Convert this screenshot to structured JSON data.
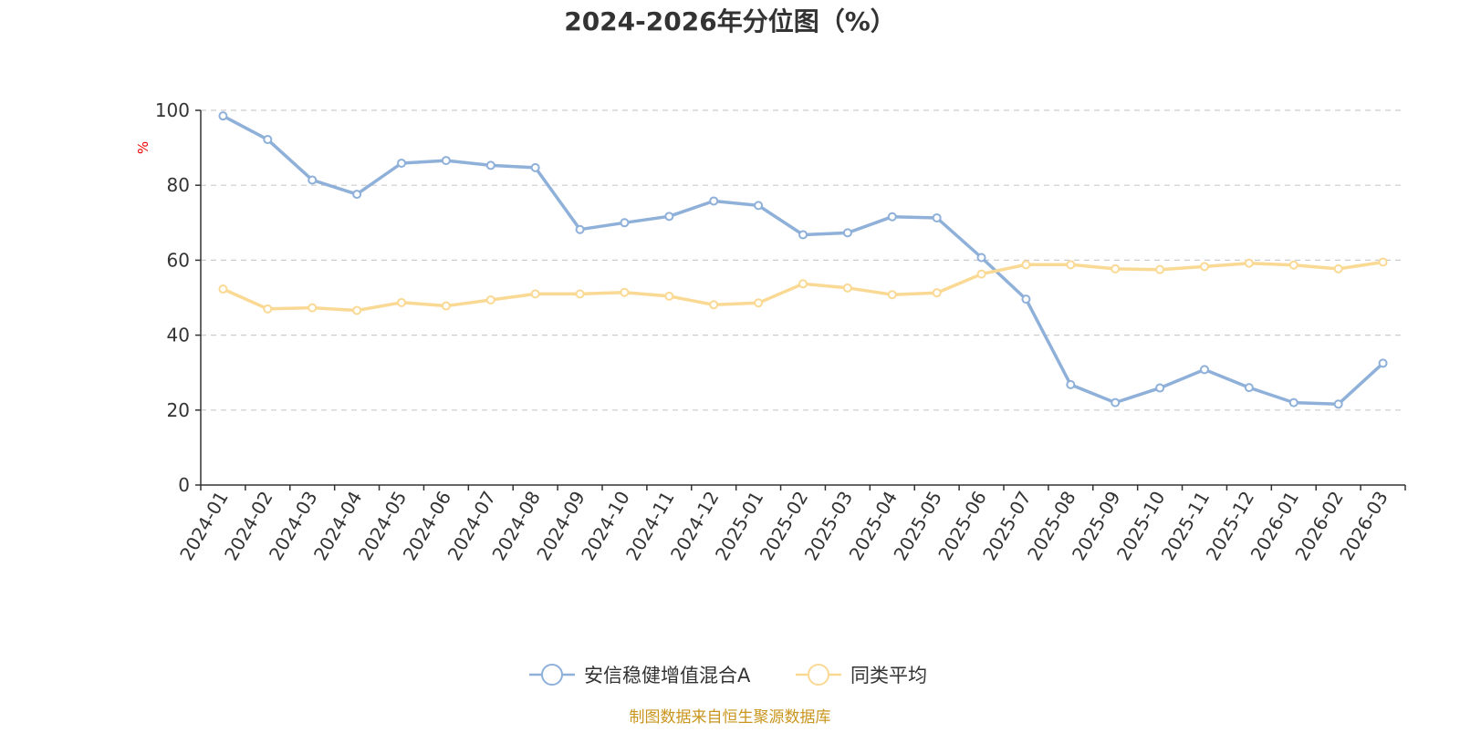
{
  "chart_data": {
    "type": "line",
    "title": "2024-2026年分位图（%）",
    "y_unit": "%",
    "ylim": [
      0,
      100
    ],
    "y_ticks": [
      0,
      20,
      40,
      60,
      80,
      100
    ],
    "grid": "horizontal dashed",
    "legend_position": "bottom-center",
    "categories": [
      "2024-01",
      "2024-02",
      "2024-03",
      "2024-04",
      "2024-05",
      "2024-06",
      "2024-07",
      "2024-08",
      "2024-09",
      "2024-10",
      "2024-11",
      "2024-12",
      "2025-01",
      "2025-02",
      "2025-03",
      "2025-04",
      "2025-05",
      "2025-06",
      "2025-07",
      "2025-08",
      "2025-09",
      "2025-10",
      "2025-11",
      "2025-12",
      "2026-01",
      "2026-02",
      "2026-03"
    ],
    "series": [
      {
        "name": "安信稳健增值混合A",
        "color": "#8eb0d9",
        "values": [
          98.5,
          92.2,
          81.4,
          77.6,
          85.9,
          86.6,
          85.3,
          84.7,
          68.2,
          70.0,
          71.7,
          75.8,
          74.6,
          66.8,
          67.3,
          71.6,
          71.3,
          60.7,
          49.6,
          26.8,
          22.0,
          25.9,
          30.8,
          26.0,
          22.0,
          21.6,
          32.5
        ]
      },
      {
        "name": "同类平均",
        "color": "#fad994",
        "values": [
          52.3,
          47.0,
          47.3,
          46.6,
          48.7,
          47.8,
          49.4,
          51.0,
          51.0,
          51.4,
          50.4,
          48.1,
          48.6,
          53.7,
          52.6,
          50.8,
          51.3,
          56.3,
          58.8,
          58.8,
          57.7,
          57.5,
          58.3,
          59.2,
          58.7,
          57.7,
          59.5
        ]
      }
    ]
  },
  "source_note": "制图数据来自恒生聚源数据库",
  "colors": {
    "axis": "#333333",
    "grid": "#cccccc",
    "unit": "#ee0000",
    "source": "#c9951d"
  }
}
